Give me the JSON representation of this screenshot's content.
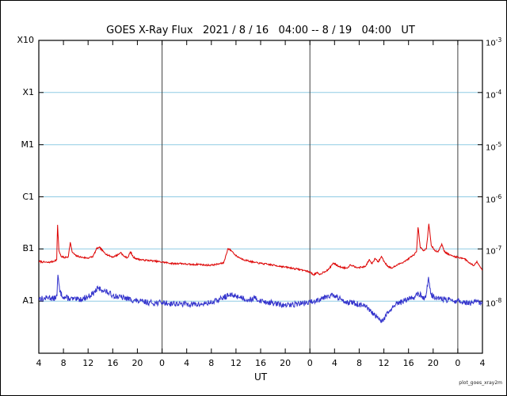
{
  "title": "GOES X-Ray Flux   2021 / 8 / 16   04:00 -- 8 / 19   04:00   UT",
  "x_axis": {
    "label": "UT",
    "tick_labels": [
      "4",
      "8",
      "12",
      "16",
      "20",
      "0",
      "4",
      "8",
      "12",
      "16",
      "20",
      "0",
      "4",
      "8",
      "12",
      "16",
      "20",
      "0",
      "4"
    ]
  },
  "y_axis_left": {
    "tick_labels": [
      "X10",
      "X1",
      "M1",
      "C1",
      "B1",
      "A1"
    ],
    "exponents": [
      -3,
      -4,
      -5,
      -6,
      -7,
      -8
    ]
  },
  "y_axis_right": {
    "base": "10",
    "exponents": [
      -3,
      -4,
      -5,
      -6,
      -7,
      -8
    ]
  },
  "watermark": "plot_goes_xray2m",
  "colors": {
    "red_series": "#dd0000",
    "blue_series": "#3333cc",
    "grid_blue": "#8fcbe4",
    "day_line": "#404040",
    "frame": "#000000"
  },
  "chart_data": {
    "type": "line",
    "title": "GOES X-Ray Flux 2021 / 8 / 16 04:00 -- 8 / 19 04:00 UT",
    "xlabel": "UT",
    "x_unit": "hours since 2021-08-16 04:00 UT",
    "x_range": [
      0,
      72
    ],
    "x_tick_interval_hours": 4,
    "y_scale": "log",
    "y_range": [
      1e-09,
      0.001
    ],
    "y_class_lines": {
      "X10": 0.001,
      "X1": 0.0001,
      "M1": 1e-05,
      "C1": 1e-06,
      "B1": 1e-07,
      "A1": 1e-08
    },
    "gridline_exponents": [
      -4,
      -5,
      -6,
      -7,
      -8
    ],
    "day_boundaries_hours": [
      20,
      44,
      68
    ],
    "series": [
      {
        "name": "xray-long-wavelength",
        "color": "#dd0000",
        "noise_decades": 0.016,
        "seed": 7,
        "points": [
          [
            0,
            5.8e-08
          ],
          [
            0.7,
            5.6e-08
          ],
          [
            1.5,
            5.5e-08
          ],
          [
            2.2,
            5.7e-08
          ],
          [
            2.9,
            6.2e-08
          ],
          [
            3.05,
            2.9e-07
          ],
          [
            3.25,
            9.5e-08
          ],
          [
            3.6,
            7.2e-08
          ],
          [
            4.2,
            6.8e-08
          ],
          [
            4.8,
            7.2e-08
          ],
          [
            5.1,
            1.35e-07
          ],
          [
            5.4,
            8.8e-08
          ],
          [
            6,
            7.4e-08
          ],
          [
            7,
            6.9e-08
          ],
          [
            8,
            6.7e-08
          ],
          [
            8.8,
            7.2e-08
          ],
          [
            9.4,
            1.02e-07
          ],
          [
            9.9,
            1.06e-07
          ],
          [
            10.5,
            8.8e-08
          ],
          [
            11.2,
            7.6e-08
          ],
          [
            12,
            7e-08
          ],
          [
            12.9,
            7.8e-08
          ],
          [
            13.3,
            8.6e-08
          ],
          [
            13.8,
            7.2e-08
          ],
          [
            14.4,
            6.8e-08
          ],
          [
            14.9,
            8.8e-08
          ],
          [
            15.3,
            7e-08
          ],
          [
            16,
            6.4e-08
          ],
          [
            17,
            6.1e-08
          ],
          [
            18,
            6e-08
          ],
          [
            19,
            5.8e-08
          ],
          [
            20,
            5.6e-08
          ],
          [
            21,
            5.4e-08
          ],
          [
            22,
            5.2e-08
          ],
          [
            23,
            5.3e-08
          ],
          [
            24,
            5.1e-08
          ],
          [
            25,
            5e-08
          ],
          [
            26,
            5.1e-08
          ],
          [
            27,
            4.9e-08
          ],
          [
            28,
            4.9e-08
          ],
          [
            29,
            5.1e-08
          ],
          [
            30,
            5.4e-08
          ],
          [
            30.7,
            1.02e-07
          ],
          [
            31.3,
            9.2e-08
          ],
          [
            32,
            7.4e-08
          ],
          [
            33,
            6.4e-08
          ],
          [
            34,
            5.9e-08
          ],
          [
            35,
            5.5e-08
          ],
          [
            36,
            5.3e-08
          ],
          [
            37,
            5.1e-08
          ],
          [
            38,
            4.9e-08
          ],
          [
            39,
            4.7e-08
          ],
          [
            40,
            4.5e-08
          ],
          [
            41,
            4.3e-08
          ],
          [
            42,
            4.1e-08
          ],
          [
            43,
            3.9e-08
          ],
          [
            44,
            3.6e-08
          ],
          [
            44.6,
            3.2e-08
          ],
          [
            45.1,
            3.5e-08
          ],
          [
            45.6,
            3.2e-08
          ],
          [
            46.2,
            3.6e-08
          ],
          [
            47,
            4e-08
          ],
          [
            47.8,
            5.4e-08
          ],
          [
            48.4,
            4.8e-08
          ],
          [
            49.2,
            4.4e-08
          ],
          [
            50,
            4.3e-08
          ],
          [
            50.6,
            5e-08
          ],
          [
            51.2,
            4.6e-08
          ],
          [
            52,
            4.4e-08
          ],
          [
            53,
            4.6e-08
          ],
          [
            53.6,
            6.2e-08
          ],
          [
            54.1,
            5.2e-08
          ],
          [
            54.6,
            6.6e-08
          ],
          [
            55.1,
            5.6e-08
          ],
          [
            55.6,
            7.2e-08
          ],
          [
            56.1,
            5.6e-08
          ],
          [
            56.7,
            4.6e-08
          ],
          [
            57.3,
            4.3e-08
          ],
          [
            58,
            4.8e-08
          ],
          [
            58.7,
            5.3e-08
          ],
          [
            59.4,
            5.8e-08
          ],
          [
            60.1,
            6.6e-08
          ],
          [
            60.8,
            7.6e-08
          ],
          [
            61.3,
            8.8e-08
          ],
          [
            61.55,
            2.6e-07
          ],
          [
            61.9,
            1.08e-07
          ],
          [
            62.4,
            9.2e-08
          ],
          [
            62.9,
            1e-07
          ],
          [
            63.3,
            3.05e-07
          ],
          [
            63.7,
            1.15e-07
          ],
          [
            64.2,
            9.6e-08
          ],
          [
            64.8,
            8.8e-08
          ],
          [
            65.4,
            1.25e-07
          ],
          [
            65.8,
            9e-08
          ],
          [
            66.4,
            8e-08
          ],
          [
            67,
            7.4e-08
          ],
          [
            68,
            6.9e-08
          ],
          [
            69,
            6.6e-08
          ],
          [
            69.6,
            5.8e-08
          ],
          [
            70.1,
            5.2e-08
          ],
          [
            70.6,
            4.8e-08
          ],
          [
            71.1,
            5.8e-08
          ],
          [
            71.6,
            4.6e-08
          ],
          [
            72,
            3.9e-08
          ]
        ]
      },
      {
        "name": "xray-short-wavelength",
        "color": "#3333cc",
        "noise_decades": 0.055,
        "seed": 13,
        "points": [
          [
            0,
            1.15e-08
          ],
          [
            0.8,
            1.1e-08
          ],
          [
            1.6,
            1.2e-08
          ],
          [
            2.4,
            1.1e-08
          ],
          [
            2.95,
            1.25e-08
          ],
          [
            3.1,
            3.2e-08
          ],
          [
            3.4,
            1.5e-08
          ],
          [
            4,
            1.2e-08
          ],
          [
            5,
            1.12e-08
          ],
          [
            6,
            1.06e-08
          ],
          [
            7,
            1.1e-08
          ],
          [
            8,
            1.22e-08
          ],
          [
            8.8,
            1.4e-08
          ],
          [
            9.6,
            1.75e-08
          ],
          [
            10.4,
            1.62e-08
          ],
          [
            11.2,
            1.45e-08
          ],
          [
            12,
            1.3e-08
          ],
          [
            13,
            1.2e-08
          ],
          [
            14,
            1.14e-08
          ],
          [
            15,
            1.06e-08
          ],
          [
            16,
            1e-08
          ],
          [
            17,
            9.6e-09
          ],
          [
            18,
            9.4e-09
          ],
          [
            19,
            9.2e-09
          ],
          [
            20,
            9.4e-09
          ],
          [
            21,
            9e-09
          ],
          [
            22,
            9e-09
          ],
          [
            23,
            8.7e-09
          ],
          [
            24,
            8.9e-09
          ],
          [
            25,
            8.6e-09
          ],
          [
            26,
            8.6e-09
          ],
          [
            27,
            8.9e-09
          ],
          [
            28,
            9.4e-09
          ],
          [
            29,
            1.03e-08
          ],
          [
            30,
            1.18e-08
          ],
          [
            31,
            1.3e-08
          ],
          [
            32,
            1.26e-08
          ],
          [
            33,
            1.16e-08
          ],
          [
            34,
            1.06e-08
          ],
          [
            35,
            1.12e-08
          ],
          [
            36,
            1.02e-08
          ],
          [
            37,
            9.6e-09
          ],
          [
            38,
            9.1e-09
          ],
          [
            39,
            8.6e-09
          ],
          [
            40,
            8.2e-09
          ],
          [
            41,
            8.5e-09
          ],
          [
            42,
            8.9e-09
          ],
          [
            43,
            9.1e-09
          ],
          [
            44,
            9.5e-09
          ],
          [
            45,
            1.02e-08
          ],
          [
            46,
            1.16e-08
          ],
          [
            47,
            1.3e-08
          ],
          [
            48,
            1.24e-08
          ],
          [
            49,
            1.08e-08
          ],
          [
            50,
            9.7e-09
          ],
          [
            51,
            9.2e-09
          ],
          [
            52,
            8.6e-09
          ],
          [
            53,
            7.8e-09
          ],
          [
            53.8,
            6.4e-09
          ],
          [
            54.6,
            5.2e-09
          ],
          [
            55.2,
            4.4e-09
          ],
          [
            55.7,
            4e-09
          ],
          [
            56.2,
            5e-09
          ],
          [
            56.8,
            6.2e-09
          ],
          [
            57.5,
            7.6e-09
          ],
          [
            58.3,
            9e-09
          ],
          [
            59.2,
            1e-08
          ],
          [
            60,
            1.1e-08
          ],
          [
            61,
            1.22e-08
          ],
          [
            61.6,
            1.4e-08
          ],
          [
            62.2,
            1.22e-08
          ],
          [
            62.8,
            1.16e-08
          ],
          [
            63.25,
            2.9e-08
          ],
          [
            63.6,
            1.35e-08
          ],
          [
            64.2,
            1.2e-08
          ],
          [
            65,
            1.12e-08
          ],
          [
            66,
            1.06e-08
          ],
          [
            67,
            1.02e-08
          ],
          [
            68,
            1e-08
          ],
          [
            69,
            9.6e-09
          ],
          [
            70,
            9.1e-09
          ],
          [
            71,
            9.6e-09
          ],
          [
            72,
            9e-09
          ]
        ]
      }
    ]
  }
}
